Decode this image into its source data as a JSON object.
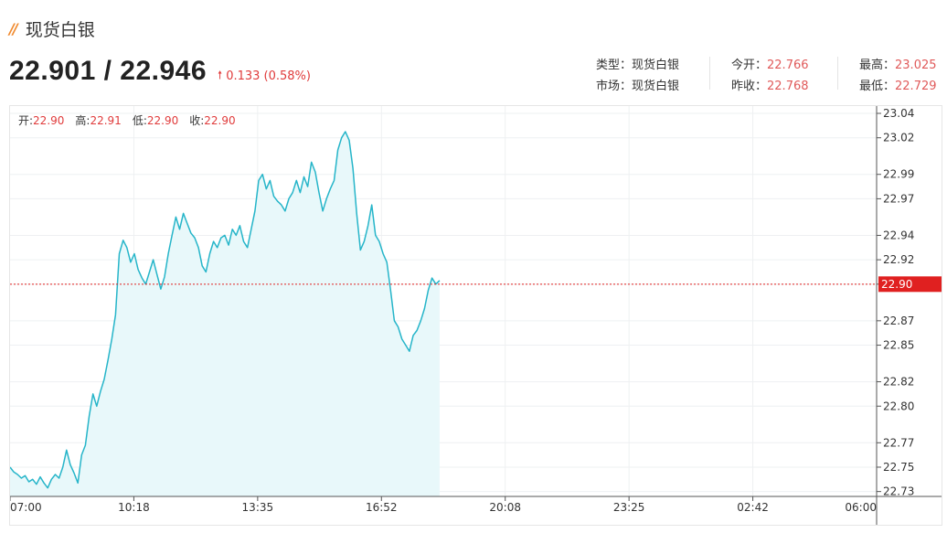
{
  "header": {
    "title_mark": "//",
    "title": "现货白银"
  },
  "price": {
    "bid_ask": "22.901 / 22.946",
    "change": "0.133 (0.58%)"
  },
  "stats": {
    "type_label": "类型：",
    "type_value": "现货白银",
    "market_label": "市场：",
    "market_value": "现货白银",
    "open_label": "今开：",
    "open_value": "22.766",
    "prev_close_label": "昨收：",
    "prev_close_value": "22.768",
    "high_label": "最高：",
    "high_value": "23.025",
    "low_label": "最低：",
    "low_value": "22.729"
  },
  "ohlc": {
    "open_label": "开:",
    "open_value": "22.90",
    "high_label": "高:",
    "high_value": "22.91",
    "low_label": "低:",
    "low_value": "22.90",
    "close_label": "收:",
    "close_value": "22.90"
  },
  "colors": {
    "line": "#26b5c9",
    "fill": "#e8f8fa",
    "up": "#e03b3b",
    "price_tag": "#e02020",
    "accent": "#f08a2e"
  },
  "chart_data": {
    "type": "area",
    "x_ticks": [
      "07:00",
      "10:18",
      "13:35",
      "16:52",
      "20:08",
      "23:25",
      "02:42",
      "06:00"
    ],
    "x_range_minutes": [
      0,
      1380
    ],
    "y_ticks": [
      "23.04",
      "23.02",
      "22.99",
      "22.97",
      "22.94",
      "22.92",
      "22.90",
      "22.87",
      "22.85",
      "22.82",
      "22.80",
      "22.77",
      "22.75",
      "22.73"
    ],
    "ylim": [
      22.726,
      23.046
    ],
    "current_price": "22.90",
    "grid": true,
    "points": [
      [
        0,
        22.75
      ],
      [
        6,
        22.746
      ],
      [
        12,
        22.744
      ],
      [
        18,
        22.741
      ],
      [
        24,
        22.743
      ],
      [
        30,
        22.738
      ],
      [
        36,
        22.74
      ],
      [
        42,
        22.736
      ],
      [
        48,
        22.742
      ],
      [
        54,
        22.737
      ],
      [
        60,
        22.733
      ],
      [
        66,
        22.74
      ],
      [
        72,
        22.744
      ],
      [
        78,
        22.741
      ],
      [
        84,
        22.75
      ],
      [
        90,
        22.764
      ],
      [
        96,
        22.752
      ],
      [
        102,
        22.745
      ],
      [
        108,
        22.737
      ],
      [
        114,
        22.76
      ],
      [
        120,
        22.768
      ],
      [
        126,
        22.792
      ],
      [
        132,
        22.81
      ],
      [
        138,
        22.8
      ],
      [
        144,
        22.812
      ],
      [
        150,
        22.822
      ],
      [
        156,
        22.838
      ],
      [
        162,
        22.855
      ],
      [
        168,
        22.875
      ],
      [
        174,
        22.925
      ],
      [
        180,
        22.936
      ],
      [
        186,
        22.93
      ],
      [
        192,
        22.918
      ],
      [
        198,
        22.925
      ],
      [
        204,
        22.912
      ],
      [
        210,
        22.905
      ],
      [
        216,
        22.9
      ],
      [
        222,
        22.91
      ],
      [
        228,
        22.92
      ],
      [
        234,
        22.908
      ],
      [
        240,
        22.896
      ],
      [
        246,
        22.906
      ],
      [
        252,
        22.925
      ],
      [
        258,
        22.94
      ],
      [
        264,
        22.955
      ],
      [
        270,
        22.945
      ],
      [
        276,
        22.958
      ],
      [
        282,
        22.95
      ],
      [
        288,
        22.942
      ],
      [
        294,
        22.938
      ],
      [
        300,
        22.93
      ],
      [
        306,
        22.915
      ],
      [
        312,
        22.91
      ],
      [
        318,
        22.925
      ],
      [
        324,
        22.935
      ],
      [
        330,
        22.93
      ],
      [
        336,
        22.938
      ],
      [
        342,
        22.94
      ],
      [
        348,
        22.932
      ],
      [
        354,
        22.945
      ],
      [
        360,
        22.94
      ],
      [
        366,
        22.948
      ],
      [
        372,
        22.935
      ],
      [
        378,
        22.93
      ],
      [
        384,
        22.945
      ],
      [
        390,
        22.96
      ],
      [
        396,
        22.985
      ],
      [
        402,
        22.99
      ],
      [
        408,
        22.978
      ],
      [
        414,
        22.985
      ],
      [
        420,
        22.972
      ],
      [
        426,
        22.968
      ],
      [
        432,
        22.965
      ],
      [
        438,
        22.96
      ],
      [
        444,
        22.97
      ],
      [
        450,
        22.975
      ],
      [
        456,
        22.985
      ],
      [
        462,
        22.975
      ],
      [
        468,
        22.988
      ],
      [
        474,
        22.98
      ],
      [
        480,
        23.0
      ],
      [
        486,
        22.992
      ],
      [
        492,
        22.975
      ],
      [
        498,
        22.96
      ],
      [
        504,
        22.97
      ],
      [
        510,
        22.978
      ],
      [
        516,
        22.985
      ],
      [
        522,
        23.01
      ],
      [
        528,
        23.02
      ],
      [
        534,
        23.025
      ],
      [
        540,
        23.018
      ],
      [
        546,
        22.995
      ],
      [
        552,
        22.958
      ],
      [
        558,
        22.928
      ],
      [
        564,
        22.935
      ],
      [
        570,
        22.948
      ],
      [
        576,
        22.965
      ],
      [
        582,
        22.94
      ],
      [
        588,
        22.935
      ],
      [
        594,
        22.925
      ],
      [
        600,
        22.918
      ],
      [
        606,
        22.895
      ],
      [
        612,
        22.87
      ],
      [
        618,
        22.865
      ],
      [
        624,
        22.855
      ],
      [
        630,
        22.85
      ],
      [
        636,
        22.845
      ],
      [
        642,
        22.858
      ],
      [
        648,
        22.862
      ],
      [
        654,
        22.87
      ],
      [
        660,
        22.88
      ],
      [
        666,
        22.895
      ],
      [
        672,
        22.905
      ],
      [
        678,
        22.9
      ],
      [
        684,
        22.903
      ]
    ]
  }
}
